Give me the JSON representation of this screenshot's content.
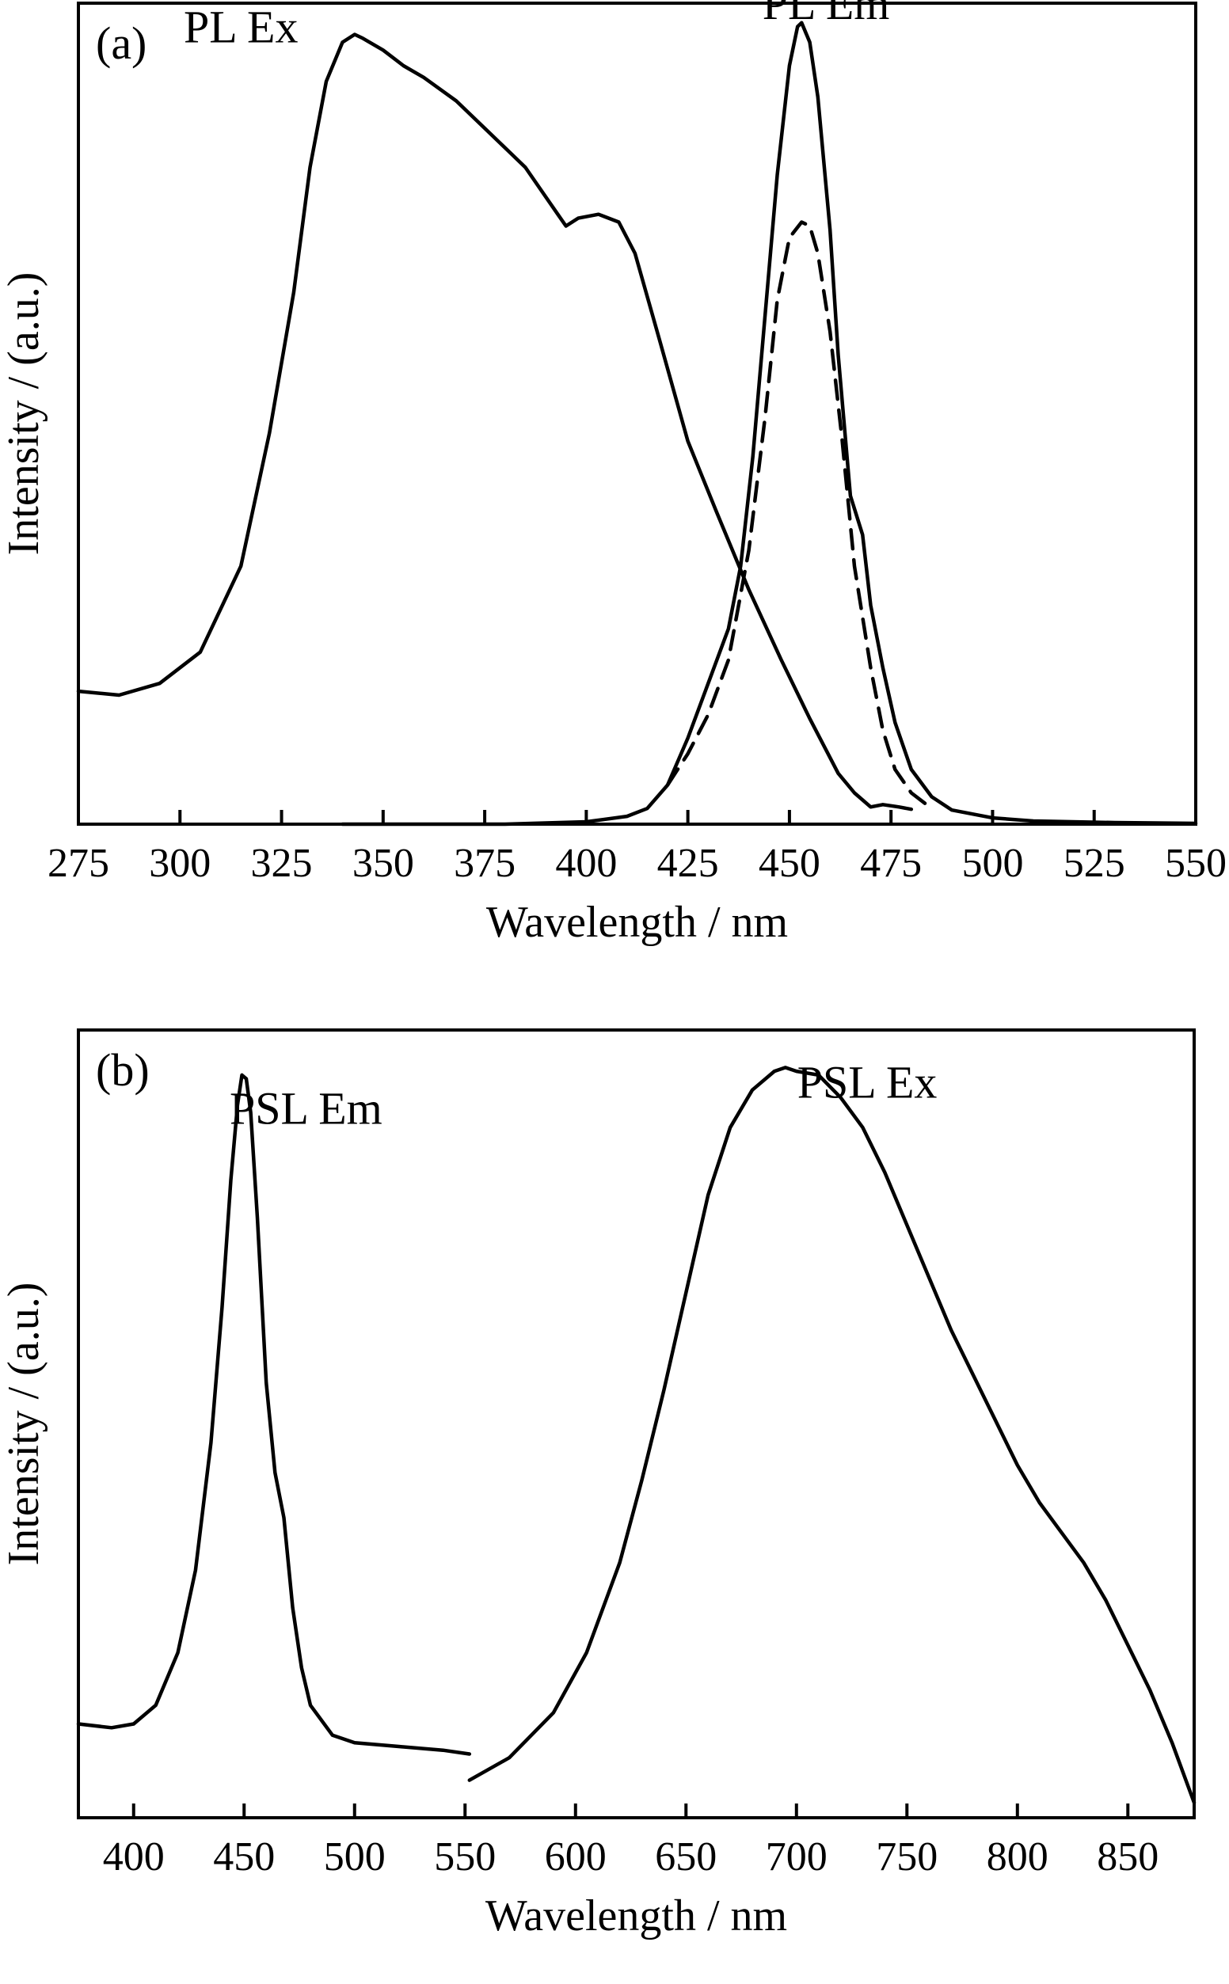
{
  "chart_data": [
    {
      "type": "line",
      "panel_label": "(a)",
      "xlabel": "Wavelength / nm",
      "ylabel": "Intensity / (a.u.)",
      "xlim": [
        275,
        550
      ],
      "ylim": [
        0,
        1.05
      ],
      "xticks": [
        275,
        300,
        325,
        350,
        375,
        400,
        425,
        450,
        475,
        500,
        525,
        550
      ],
      "show_y_ticks": false,
      "grid": false,
      "legend": "none",
      "annotations": [
        {
          "text": "PL Ex",
          "x": 315,
          "y": 1.0
        },
        {
          "text": "PL Em",
          "x": 459,
          "y": 1.03
        }
      ],
      "series": [
        {
          "label_ref": "PL Ex",
          "style": "solid",
          "x": [
            275,
            285,
            295,
            305,
            315,
            322,
            328,
            332,
            336,
            340,
            343,
            345,
            350,
            355,
            360,
            368,
            375,
            385,
            393,
            395,
            398,
            403,
            408,
            412,
            418,
            425,
            432,
            440,
            448,
            455,
            462,
            466,
            470,
            473,
            477,
            480
          ],
          "y": [
            0.17,
            0.165,
            0.18,
            0.22,
            0.33,
            0.5,
            0.68,
            0.84,
            0.95,
            1.0,
            1.01,
            1.005,
            0.99,
            0.97,
            0.955,
            0.925,
            0.89,
            0.84,
            0.78,
            0.765,
            0.775,
            0.78,
            0.77,
            0.73,
            0.62,
            0.49,
            0.4,
            0.3,
            0.21,
            0.135,
            0.065,
            0.04,
            0.022,
            0.025,
            0.022,
            0.019
          ]
        },
        {
          "label_ref": "PL Em",
          "style": "solid",
          "x": [
            340,
            360,
            380,
            400,
            410,
            415,
            420,
            425,
            430,
            435,
            438,
            441,
            444,
            447,
            450,
            452,
            453,
            455,
            457,
            460,
            462,
            465,
            468,
            470,
            473,
            476,
            480,
            485,
            490,
            500,
            510,
            530,
            550
          ],
          "y": [
            0.0,
            0.0,
            0.0,
            0.003,
            0.01,
            0.02,
            0.05,
            0.11,
            0.18,
            0.25,
            0.33,
            0.47,
            0.65,
            0.83,
            0.97,
            1.02,
            1.025,
            1.0,
            0.93,
            0.76,
            0.6,
            0.42,
            0.37,
            0.28,
            0.2,
            0.13,
            0.07,
            0.035,
            0.018,
            0.008,
            0.004,
            0.002,
            0.001
          ]
        },
        {
          "label_ref": "PL Em",
          "style": "dashed",
          "x": [
            420,
            425,
            430,
            435,
            440,
            444,
            447,
            450,
            453,
            455,
            457,
            460,
            463,
            466,
            470,
            473,
            476,
            480,
            485
          ],
          "y": [
            0.05,
            0.09,
            0.14,
            0.21,
            0.35,
            0.52,
            0.67,
            0.75,
            0.77,
            0.765,
            0.73,
            0.63,
            0.49,
            0.33,
            0.2,
            0.12,
            0.07,
            0.04,
            0.02
          ]
        }
      ]
    },
    {
      "type": "line",
      "panel_label": "(b)",
      "xlabel": "Wavelength / nm",
      "ylabel": "Intensity / (a.u.)",
      "xlim": [
        375,
        880
      ],
      "ylim": [
        0,
        1.05
      ],
      "xticks": [
        400,
        450,
        500,
        550,
        600,
        650,
        700,
        750,
        800,
        850
      ],
      "show_y_ticks": false,
      "grid": false,
      "legend": "none",
      "annotations": [
        {
          "text": "PSL Em",
          "x": 478,
          "y": 0.925
        },
        {
          "text": "PSL Ex",
          "x": 732,
          "y": 0.96
        }
      ],
      "series": [
        {
          "label_ref": "PSL Em",
          "style": "solid",
          "x": [
            375,
            390,
            400,
            410,
            420,
            428,
            435,
            440,
            444,
            447,
            449,
            451,
            453,
            456,
            460,
            464,
            468,
            472,
            476,
            480,
            490,
            500,
            520,
            540,
            552
          ],
          "y": [
            0.125,
            0.12,
            0.125,
            0.15,
            0.22,
            0.33,
            0.5,
            0.68,
            0.85,
            0.95,
            0.99,
            0.985,
            0.94,
            0.8,
            0.58,
            0.46,
            0.4,
            0.28,
            0.2,
            0.15,
            0.11,
            0.1,
            0.095,
            0.09,
            0.085
          ]
        },
        {
          "label_ref": "PSL Ex",
          "style": "solid",
          "x": [
            552,
            570,
            590,
            605,
            620,
            630,
            640,
            650,
            660,
            670,
            680,
            690,
            695,
            700,
            710,
            720,
            730,
            740,
            750,
            760,
            770,
            780,
            790,
            800,
            810,
            820,
            830,
            840,
            850,
            860,
            870,
            880
          ],
          "y": [
            0.05,
            0.08,
            0.14,
            0.22,
            0.34,
            0.45,
            0.57,
            0.7,
            0.83,
            0.92,
            0.97,
            0.995,
            1.0,
            0.995,
            0.99,
            0.96,
            0.92,
            0.86,
            0.79,
            0.72,
            0.65,
            0.59,
            0.53,
            0.47,
            0.42,
            0.38,
            0.34,
            0.29,
            0.23,
            0.17,
            0.1,
            0.02
          ]
        }
      ]
    }
  ]
}
